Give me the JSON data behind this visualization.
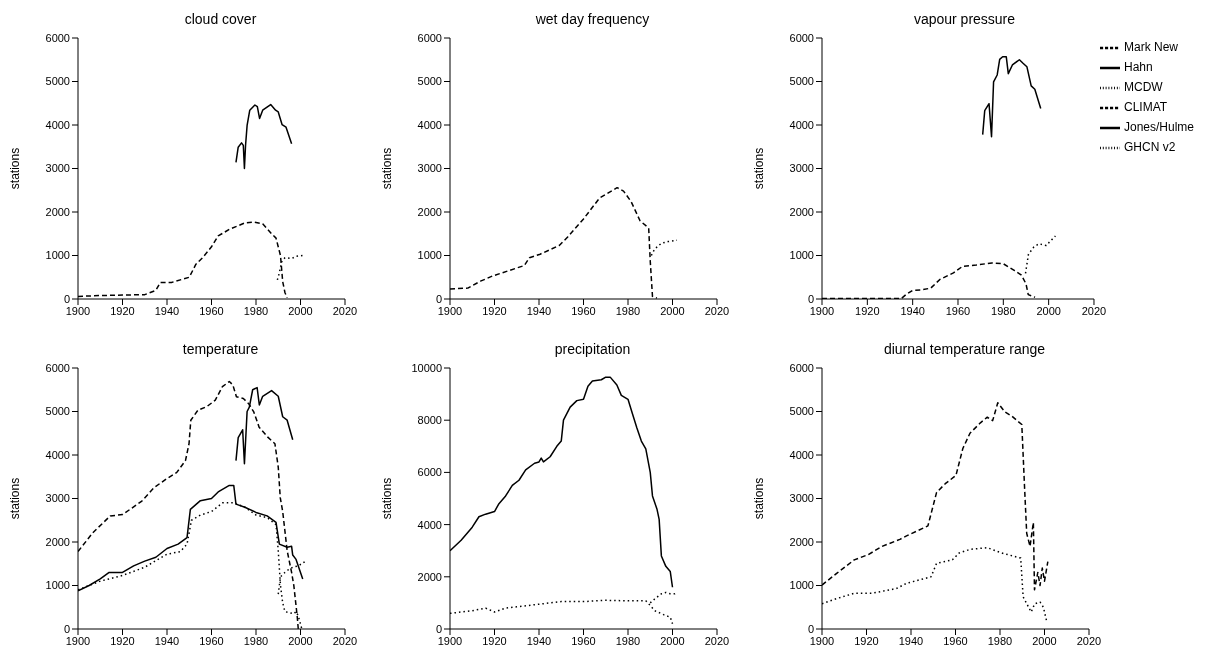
{
  "chart_data": [
    {
      "type": "line",
      "title": "cloud cover",
      "ylabel": "stations",
      "xlim": [
        1900,
        2020
      ],
      "xticks": [
        1900,
        1920,
        1940,
        1960,
        1980,
        2000,
        2020
      ],
      "ylim": [
        0,
        6000
      ],
      "yticks": [
        0,
        1000,
        2000,
        3000,
        4000,
        5000,
        6000
      ],
      "grid": false,
      "legend": false,
      "series": [
        {
          "color": "#000000",
          "line_style": "dashed",
          "x": [
            1900,
            1910,
            1920,
            1930,
            1935,
            1937,
            1942,
            1950,
            1953,
            1956,
            1960,
            1963,
            1968,
            1975,
            1979,
            1983,
            1987,
            1989,
            1991,
            1991.5,
            1992,
            1993,
            1994
          ],
          "values": [
            60,
            80,
            90,
            100,
            200,
            380,
            380,
            500,
            800,
            950,
            1200,
            1450,
            1600,
            1750,
            1770,
            1730,
            1500,
            1400,
            1000,
            700,
            400,
            150,
            30
          ]
        },
        {
          "color": "#000000",
          "line_style": "solid",
          "x": [
            1971,
            1972,
            1973.5,
            1974.3,
            1974.8,
            1975.3,
            1976,
            1977.2,
            1979.5,
            1980.6,
            1981.6,
            1983,
            1986.6,
            1988.8,
            1990,
            1991.7,
            1993.5,
            1996
          ],
          "values": [
            3140,
            3490,
            3590,
            3530,
            3000,
            3530,
            3990,
            4340,
            4460,
            4420,
            4150,
            4340,
            4470,
            4340,
            4300,
            4010,
            3950,
            3570
          ]
        },
        {
          "color": "#000000",
          "line_style": "dotted",
          "x": [
            1989.6,
            1990.5,
            1991.5,
            1993,
            1996,
            1998,
            2001
          ],
          "values": [
            440,
            600,
            850,
            950,
            930,
            980,
            1000
          ]
        }
      ]
    },
    {
      "type": "line",
      "title": "wet day frequency",
      "ylabel": "stations",
      "xlim": [
        1900,
        2020
      ],
      "xticks": [
        1900,
        1920,
        1940,
        1960,
        1980,
        2000,
        2020
      ],
      "ylim": [
        0,
        6000
      ],
      "yticks": [
        0,
        1000,
        2000,
        3000,
        4000,
        5000,
        6000
      ],
      "grid": false,
      "legend": false,
      "series": [
        {
          "color": "#000000",
          "line_style": "dashed",
          "x": [
            1900,
            1908,
            1913.7,
            1919.2,
            1926.3,
            1933.4,
            1935.7,
            1940.5,
            1949.1,
            1953,
            1960,
            1967.2,
            1975.1,
            1978,
            1981.4,
            1985.4,
            1989.3,
            1990,
            1991,
            1993
          ],
          "values": [
            230,
            250,
            410,
            530,
            650,
            770,
            950,
            1030,
            1230,
            1430,
            1840,
            2320,
            2560,
            2480,
            2240,
            1800,
            1630,
            870,
            60,
            20
          ]
        },
        {
          "color": "#000000",
          "line_style": "dotted",
          "x": [
            1990.5,
            1992,
            1995,
            1998,
            2002
          ],
          "values": [
            1000,
            1150,
            1280,
            1320,
            1350
          ]
        }
      ]
    },
    {
      "type": "line",
      "title": "vapour pressure",
      "ylabel": "stations",
      "xlim": [
        1900,
        2020
      ],
      "xticks": [
        1900,
        1920,
        1940,
        1960,
        1980,
        2000,
        2020
      ],
      "ylim": [
        0,
        6000
      ],
      "yticks": [
        0,
        1000,
        2000,
        3000,
        4000,
        5000,
        6000
      ],
      "grid": false,
      "legend": "right",
      "series": [
        {
          "name": "Mark New",
          "color": "#000000",
          "line_style": "dashed",
          "x": [
            1900,
            1935,
            1937,
            1940,
            1944,
            1948,
            1952,
            1958,
            1962,
            1968,
            1975,
            1980,
            1985,
            1988,
            1990,
            1991,
            1994
          ],
          "values": [
            10,
            10,
            100,
            200,
            210,
            250,
            450,
            600,
            750,
            780,
            830,
            810,
            650,
            550,
            350,
            100,
            40
          ]
        },
        {
          "name": "Hahn",
          "color": "#000000",
          "line_style": "solid",
          "x": [
            1970.9,
            1971.8,
            1973.7,
            1974.8,
            1975.7,
            1977.3,
            1978.4,
            1979.7,
            1981.3,
            1982.2,
            1984,
            1987.1,
            1988.7,
            1990.4,
            1992.3,
            1993.9,
            1996.5
          ],
          "values": [
            3780,
            4330,
            4490,
            3730,
            4990,
            5150,
            5510,
            5570,
            5570,
            5180,
            5380,
            5500,
            5420,
            5340,
            4900,
            4820,
            4380
          ]
        },
        {
          "name": "MCDW",
          "color": "#000000",
          "line_style": "dotted",
          "x": [
            1989.8,
            1991.1,
            1993.4,
            1995.7,
            1998.9,
            2003
          ],
          "values": [
            590,
            1030,
            1190,
            1270,
            1230,
            1450
          ]
        },
        {
          "name": "CLIMAT",
          "color": "#000000",
          "line_style": "dashed"
        },
        {
          "name": "Jones/Hulme",
          "color": "#000000",
          "line_style": "solid"
        },
        {
          "name": "GHCN v2",
          "color": "#000000",
          "line_style": "dotted"
        }
      ]
    },
    {
      "type": "line",
      "title": "temperature",
      "ylabel": "stations",
      "xlim": [
        1900,
        2020
      ],
      "xticks": [
        1900,
        1920,
        1940,
        1960,
        1980,
        2000,
        2020
      ],
      "ylim": [
        0,
        6000
      ],
      "yticks": [
        0,
        1000,
        2000,
        3000,
        4000,
        5000,
        6000
      ],
      "grid": false,
      "legend": false,
      "series": [
        {
          "color": "#000000",
          "line_style": "dashed",
          "x": [
            1900,
            1906.6,
            1914.5,
            1920,
            1928.7,
            1934.2,
            1939.7,
            1944.4,
            1948.3,
            1949.9,
            1950.7,
            1953.9,
            1957.8,
            1961.7,
            1964.9,
            1968,
            1969.6,
            1971.2,
            1974.3,
            1976.7,
            1979,
            1981.4,
            1985.3,
            1988.5,
            1990,
            1990.9,
            1992,
            1994,
            1996,
            1997,
            1998.5,
            1999
          ],
          "values": [
            1780,
            2210,
            2600,
            2630,
            2940,
            3250,
            3450,
            3600,
            3870,
            4260,
            4800,
            5030,
            5110,
            5260,
            5570,
            5690,
            5610,
            5340,
            5300,
            5180,
            4990,
            4640,
            4410,
            4260,
            3720,
            3020,
            2700,
            1800,
            1300,
            1000,
            300,
            0
          ]
        },
        {
          "color": "#000000",
          "line_style": "solid",
          "x": [
            1971,
            1972,
            1974,
            1974.8,
            1976,
            1977,
            1978.5,
            1980.5,
            1981.5,
            1983,
            1987,
            1990,
            1992,
            1994,
            1996.5
          ],
          "values": [
            3870,
            4400,
            4580,
            3800,
            5000,
            5100,
            5500,
            5550,
            5150,
            5350,
            5480,
            5350,
            4880,
            4800,
            4350
          ]
        },
        {
          "color": "#000000",
          "line_style": "solid",
          "x": [
            1900,
            1905,
            1910,
            1914,
            1920,
            1925,
            1930,
            1935,
            1940,
            1945,
            1949,
            1950.5,
            1955,
            1960,
            1963,
            1968,
            1970,
            1971,
            1975,
            1980,
            1985,
            1989,
            1990.5,
            1994,
            1996,
            1996.5,
            1998,
            2000,
            2001
          ],
          "values": [
            880,
            1000,
            1150,
            1300,
            1300,
            1450,
            1560,
            1650,
            1850,
            1950,
            2100,
            2750,
            2950,
            3000,
            3150,
            3300,
            3300,
            2870,
            2800,
            2680,
            2600,
            2450,
            1950,
            1880,
            1900,
            1700,
            1600,
            1300,
            1150
          ]
        },
        {
          "color": "#000000",
          "line_style": "dotted",
          "x": [
            1900,
            1910,
            1920,
            1930,
            1940,
            1946,
            1949,
            1951,
            1955,
            1960,
            1965,
            1970,
            1975,
            1980,
            1985,
            1989,
            1990,
            1991,
            1992,
            1993,
            1997,
            1998,
            1999,
            2000.5
          ],
          "values": [
            900,
            1100,
            1230,
            1420,
            1720,
            1780,
            1950,
            2500,
            2620,
            2700,
            2900,
            2900,
            2800,
            2620,
            2560,
            2400,
            1800,
            1000,
            600,
            400,
            350,
            400,
            300,
            20
          ]
        },
        {
          "color": "#000000",
          "line_style": "dotted",
          "x": [
            1990,
            1991,
            1993,
            1995,
            1997,
            1999,
            2002
          ],
          "values": [
            800,
            1200,
            1300,
            1380,
            1430,
            1450,
            1550
          ]
        }
      ]
    },
    {
      "type": "line",
      "title": "precipitation",
      "ylabel": "stations",
      "xlim": [
        1900,
        2020
      ],
      "xticks": [
        1900,
        1920,
        1940,
        1960,
        1980,
        2000,
        2020
      ],
      "ylim": [
        0,
        10000
      ],
      "yticks": [
        0,
        2000,
        4000,
        6000,
        8000,
        10000
      ],
      "grid": false,
      "legend": false,
      "series": [
        {
          "color": "#000000",
          "line_style": "solid",
          "x": [
            1900,
            1905,
            1910,
            1913,
            1916,
            1920,
            1922,
            1925,
            1928,
            1931,
            1934,
            1938,
            1940,
            1941,
            1942,
            1945,
            1948,
            1950,
            1951,
            1954,
            1957,
            1960,
            1962,
            1964,
            1968,
            1970,
            1972,
            1975,
            1977,
            1980,
            1982,
            1984,
            1986,
            1988,
            1990,
            1991,
            1993,
            1994,
            1995,
            1997,
            1999,
            2000
          ],
          "values": [
            3000,
            3400,
            3900,
            4300,
            4400,
            4500,
            4800,
            5100,
            5500,
            5700,
            6100,
            6350,
            6400,
            6550,
            6400,
            6600,
            7000,
            7200,
            8000,
            8500,
            8750,
            8800,
            9300,
            9500,
            9550,
            9650,
            9650,
            9350,
            8950,
            8800,
            8250,
            7700,
            7200,
            6900,
            6000,
            5100,
            4600,
            4200,
            2800,
            2400,
            2200,
            1600
          ]
        },
        {
          "color": "#000000",
          "line_style": "dotted",
          "x": [
            1900,
            1910,
            1916,
            1920,
            1925,
            1930,
            1940,
            1950,
            1960,
            1970,
            1980,
            1988,
            1990,
            1992,
            1996,
            1999,
            2000
          ],
          "values": [
            600,
            700,
            800,
            650,
            800,
            850,
            950,
            1050,
            1050,
            1100,
            1080,
            1080,
            900,
            700,
            550,
            450,
            200
          ]
        },
        {
          "color": "#000000",
          "line_style": "dotted",
          "x": [
            1990,
            1992,
            1995,
            1997,
            1999,
            2001,
            2002
          ],
          "values": [
            1000,
            1150,
            1350,
            1400,
            1350,
            1350,
            1400
          ]
        }
      ]
    },
    {
      "type": "line",
      "title": "diurnal temperature range",
      "ylabel": "stations",
      "xlim": [
        1900,
        2020
      ],
      "xticks": [
        1900,
        1920,
        1940,
        1960,
        1980,
        2000,
        2020
      ],
      "ylim": [
        0,
        6000
      ],
      "yticks": [
        0,
        1000,
        2000,
        3000,
        4000,
        5000,
        6000
      ],
      "grid": false,
      "legend": false,
      "series": [
        {
          "color": "#000000",
          "line_style": "dashed",
          "x": [
            1900,
            1906.6,
            1914.5,
            1920.8,
            1927,
            1935,
            1938,
            1947.6,
            1951.5,
            1955.4,
            1960.2,
            1963.3,
            1966.5,
            1971.2,
            1974.3,
            1976.7,
            1979,
            1982.2,
            1985.4,
            1989.8,
            1991,
            1992,
            1993.5,
            1995,
            1995.5,
            1997,
            1998,
            1999,
            2000,
            2001.5
          ],
          "values": [
            1010,
            1280,
            1590,
            1710,
            1900,
            2060,
            2140,
            2370,
            3140,
            3340,
            3530,
            4150,
            4500,
            4740,
            4870,
            4790,
            5200,
            4990,
            4890,
            4700,
            3300,
            2200,
            1900,
            2450,
            900,
            1300,
            1000,
            1400,
            1100,
            1550
          ]
        },
        {
          "color": "#000000",
          "line_style": "dotted",
          "x": [
            1900,
            1906.6,
            1914.5,
            1922.4,
            1933.4,
            1938,
            1949,
            1951.5,
            1958.6,
            1961.7,
            1966.5,
            1974.3,
            1980.6,
            1989.3,
            1990.4,
            1994,
            1995.6,
            1998,
            1999.5,
            2001.1
          ],
          "values": [
            580,
            700,
            820,
            820,
            930,
            1050,
            1200,
            1510,
            1590,
            1750,
            1830,
            1870,
            1750,
            1630,
            740,
            390,
            580,
            620,
            500,
            150
          ]
        }
      ]
    }
  ]
}
